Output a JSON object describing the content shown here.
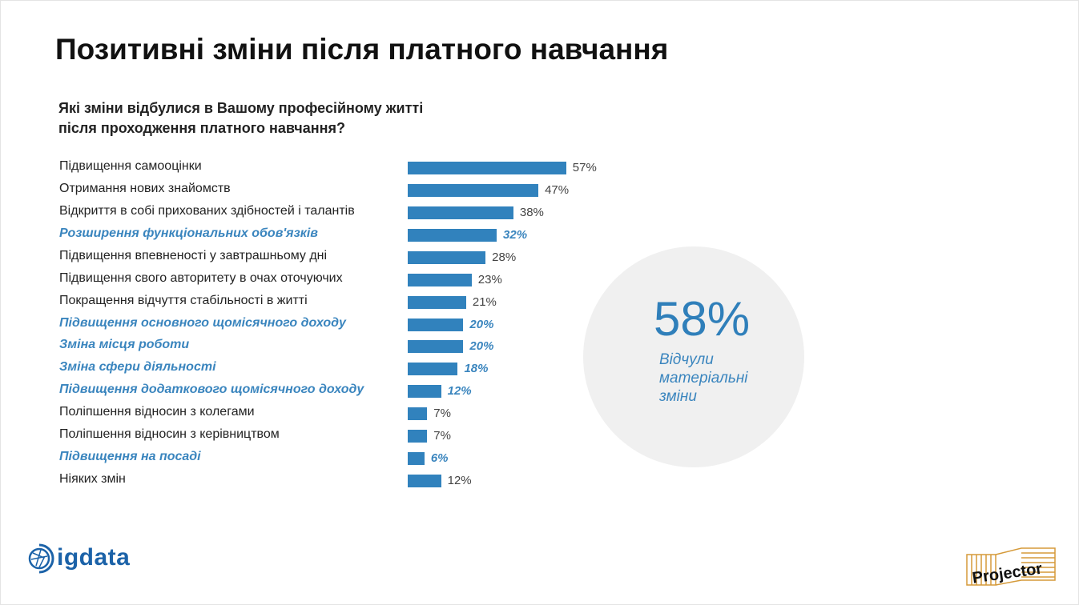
{
  "title": "Позитивні зміни після платного навчання",
  "question": [
    "Які зміни відбулися в Вашому професійному житті",
    "після проходження платного навчання?"
  ],
  "chart_data": {
    "type": "bar",
    "orientation": "horizontal",
    "highlight_color": "#3a85be",
    "bar_color": "#3182bd",
    "categories": [
      "Підвищення самооцінки",
      "Отримання нових знайомств",
      "Відкриття в собі прихованих здібностей і талантів",
      "Розширення функціональних обов'язків",
      "Підвищення впевненості у завтрашньому дні",
      "Підвищення свого авторитету в очах оточуючих",
      "Покращення відчуття стабільності в житті",
      "Підвищення основного щомісячного доходу",
      "Зміна місця роботи",
      "Зміна сфери діяльності",
      "Підвищення додаткового щомісячного доходу",
      "Поліпшення відносин з колегами",
      "Поліпшення відносин з керівництвом",
      "Підвищення на посаді",
      "Ніяких змін"
    ],
    "values": [
      57,
      47,
      38,
      32,
      28,
      23,
      21,
      20,
      20,
      18,
      12,
      7,
      7,
      6,
      12
    ],
    "labels": [
      "57%",
      "47%",
      "38%",
      "32%",
      "28%",
      "23%",
      "21%",
      "20%",
      "20%",
      "18%",
      "12%",
      "7%",
      "7%",
      "6%",
      "12%"
    ],
    "highlighted": [
      false,
      false,
      false,
      true,
      false,
      false,
      false,
      true,
      true,
      true,
      true,
      false,
      false,
      true,
      false
    ]
  },
  "callout": {
    "value": "58%",
    "text": "Відчули матеріальні зміни"
  },
  "logos": {
    "left": "digdata",
    "right": "Projector"
  }
}
